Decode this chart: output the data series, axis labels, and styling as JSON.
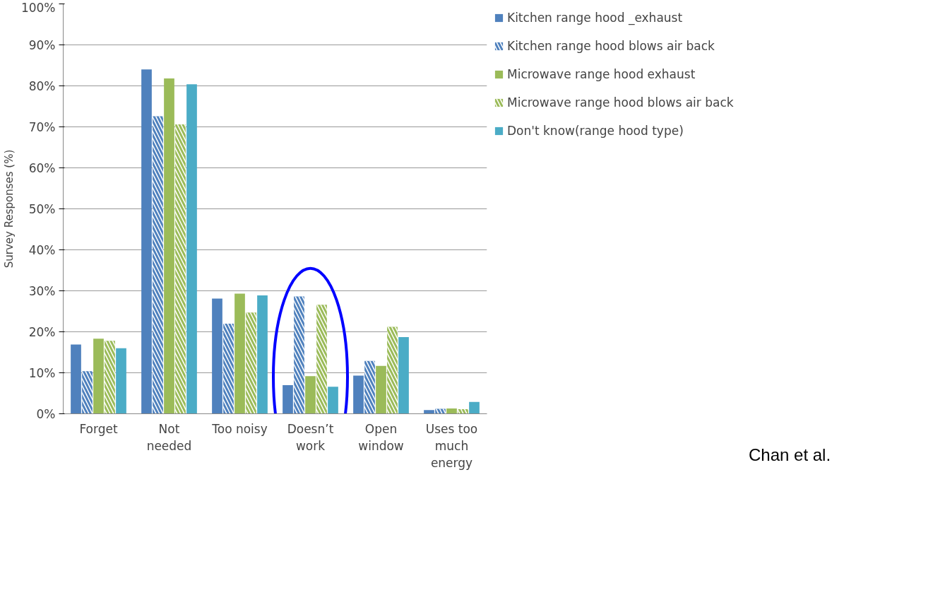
{
  "chart_data": {
    "type": "bar",
    "ylabel": "Survey Responses (%)",
    "categories": [
      "Forget",
      "Not needed",
      "Too noisy",
      "Doesn’t work",
      "Open window",
      "Uses too much energy"
    ],
    "series": [
      {
        "name": "Kitchen range hood _exhaust",
        "color": "#4f81bd",
        "values": [
          16.9,
          84.0,
          28.1,
          7.0,
          9.3,
          0.9
        ]
      },
      {
        "name": "Kitchen range hood blows air back",
        "color": "#4f81bd",
        "values": [
          10.4,
          72.6,
          22.0,
          28.6,
          12.9,
          1.2
        ]
      },
      {
        "name": "Microwave range hood exhaust",
        "color": "#9bbb59",
        "values": [
          18.3,
          81.8,
          29.3,
          9.2,
          11.7,
          1.3
        ]
      },
      {
        "name": "Microwave range hood blows air back",
        "color": "#9bbb59",
        "values": [
          17.8,
          70.6,
          24.7,
          26.6,
          21.2,
          1.1
        ]
      },
      {
        "name": "Don't know(range hood type)",
        "color": "#4bacc6",
        "values": [
          16.0,
          80.4,
          28.9,
          6.6,
          18.7,
          2.9
        ]
      }
    ],
    "ylim": [
      0,
      100
    ],
    "yticks": [
      {
        "value": 0,
        "label": "0%"
      },
      {
        "value": 10,
        "label": "10%"
      },
      {
        "value": 20,
        "label": "20%"
      },
      {
        "value": 30,
        "label": "30%"
      },
      {
        "value": 40,
        "label": "40%"
      },
      {
        "value": 50,
        "label": "50%"
      },
      {
        "value": 60,
        "label": "60%"
      },
      {
        "value": 70,
        "label": "70%"
      },
      {
        "value": 80,
        "label": "80%"
      },
      {
        "value": 90,
        "label": "90%"
      },
      {
        "value": 100,
        "label": "100%"
      }
    ],
    "grid": "y",
    "legend": "top right",
    "annotations": [
      "Chan et al."
    ]
  }
}
